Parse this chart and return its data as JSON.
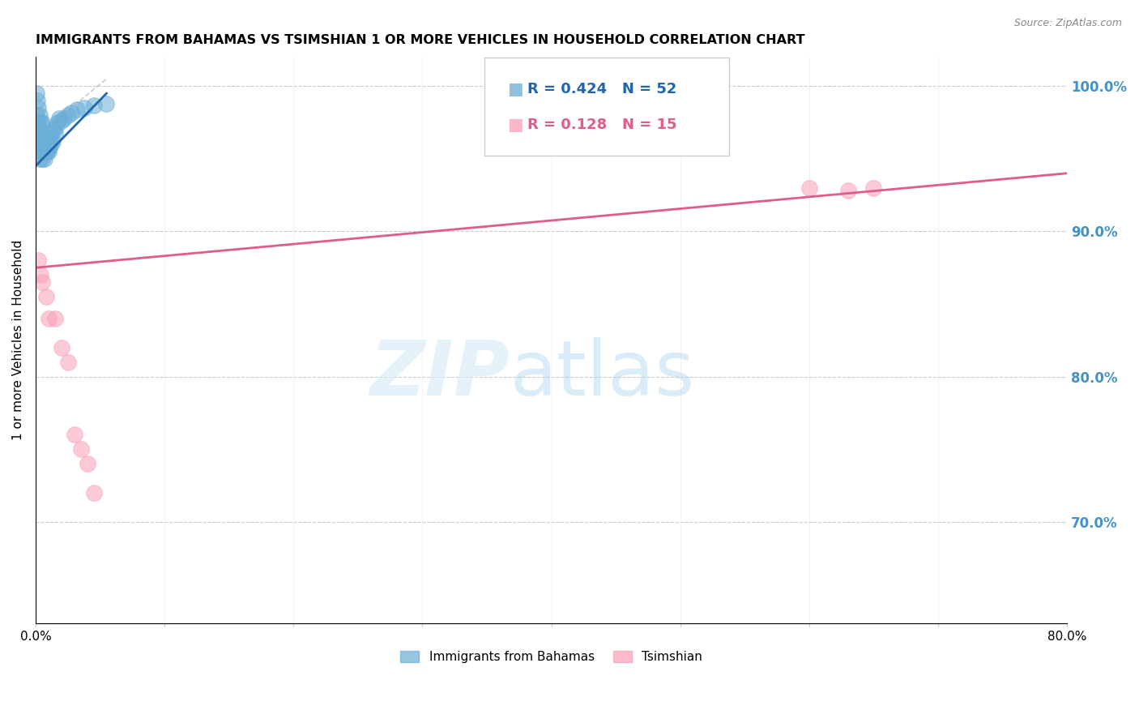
{
  "title": "IMMIGRANTS FROM BAHAMAS VS TSIMSHIAN 1 OR MORE VEHICLES IN HOUSEHOLD CORRELATION CHART",
  "source": "Source: ZipAtlas.com",
  "ylabel": "1 or more Vehicles in Household",
  "right_yticks": [
    100.0,
    90.0,
    80.0,
    70.0
  ],
  "legend1_R": "0.424",
  "legend1_N": "52",
  "legend2_R": "0.128",
  "legend2_N": "15",
  "legend_label1": "Immigrants from Bahamas",
  "legend_label2": "Tsimshian",
  "blue_color": "#6baed6",
  "pink_color": "#fa9fb5",
  "blue_line_color": "#2166ac",
  "pink_line_color": "#e05c8a",
  "right_axis_color": "#4292c6",
  "blue_x": [
    0.0005,
    0.0008,
    0.001,
    0.001,
    0.0012,
    0.0015,
    0.0015,
    0.002,
    0.002,
    0.002,
    0.0025,
    0.003,
    0.003,
    0.003,
    0.003,
    0.0035,
    0.004,
    0.004,
    0.004,
    0.005,
    0.005,
    0.005,
    0.005,
    0.006,
    0.006,
    0.007,
    0.007,
    0.008,
    0.008,
    0.009,
    0.009,
    0.01,
    0.01,
    0.01,
    0.011,
    0.011,
    0.012,
    0.012,
    0.013,
    0.014,
    0.015,
    0.016,
    0.017,
    0.018,
    0.02,
    0.022,
    0.025,
    0.028,
    0.032,
    0.038,
    0.045,
    0.055
  ],
  "blue_y": [
    0.96,
    0.98,
    0.975,
    0.995,
    0.965,
    0.97,
    0.99,
    0.96,
    0.975,
    0.985,
    0.97,
    0.95,
    0.96,
    0.97,
    0.98,
    0.955,
    0.96,
    0.965,
    0.975,
    0.95,
    0.96,
    0.965,
    0.975,
    0.955,
    0.965,
    0.95,
    0.96,
    0.955,
    0.965,
    0.955,
    0.96,
    0.955,
    0.96,
    0.965,
    0.958,
    0.965,
    0.96,
    0.968,
    0.962,
    0.97,
    0.968,
    0.972,
    0.975,
    0.978,
    0.976,
    0.978,
    0.98,
    0.982,
    0.984,
    0.985,
    0.987,
    0.988
  ],
  "pink_x": [
    0.002,
    0.004,
    0.005,
    0.008,
    0.01,
    0.015,
    0.02,
    0.025,
    0.03,
    0.035,
    0.04,
    0.045,
    0.6,
    0.63,
    0.65
  ],
  "pink_y": [
    0.88,
    0.87,
    0.865,
    0.855,
    0.84,
    0.84,
    0.82,
    0.81,
    0.76,
    0.75,
    0.74,
    0.72,
    0.93,
    0.928,
    0.93
  ],
  "xlim": [
    0.0,
    0.8
  ],
  "ylim": [
    0.63,
    1.02
  ],
  "blue_trend_x": [
    0.0,
    0.055
  ],
  "blue_trend_y": [
    0.945,
    0.995
  ],
  "pink_trend_x": [
    0.0,
    0.8
  ],
  "pink_trend_y": [
    0.875,
    0.94
  ]
}
